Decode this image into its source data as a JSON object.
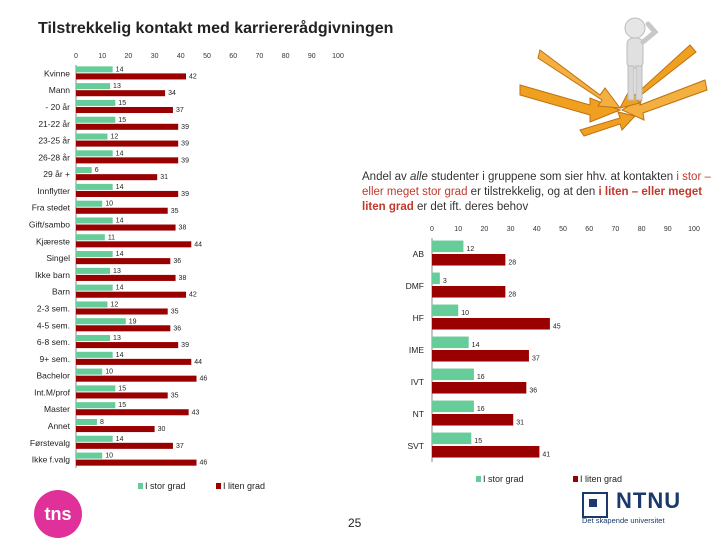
{
  "title": "Tilstrekkelig kontakt med karriererådgivningen",
  "note": {
    "part1": "Andel av",
    "alle": "alle",
    "part2": "studenter i gruppene som sier  hhv. at kontakten",
    "stor_phrase": "i stor – eller meget stor grad",
    "part3": "er tilstrekkelig, og at den",
    "liten_phrase": "i liten – eller meget liten grad",
    "part4": "er det ift. deres behov"
  },
  "page_number": "25",
  "logo_tns": "tns",
  "logo_ntnu": "NTNU",
  "logo_ntnu_tagline": "Det skapende universitet",
  "colors": {
    "stor": "#66cc99",
    "liten": "#990000",
    "accent_orange": "#f0a020"
  },
  "chart_data": [
    {
      "type": "bar",
      "orientation": "horizontal",
      "title": "",
      "xlim": [
        0,
        100
      ],
      "xticks": [
        0,
        10,
        20,
        30,
        40,
        50,
        60,
        70,
        80,
        90,
        100
      ],
      "categories": [
        "Kvinne",
        "Mann",
        "- 20 år",
        "21-22 år",
        "23-25 år",
        "26-28 år",
        "29 år +",
        "Innflytter",
        "Fra stedet",
        "Gift/sambo",
        "Kjæreste",
        "Singel",
        "Ikke barn",
        "Barn",
        "2-3 sem.",
        "4-5 sem.",
        "6-8 sem.",
        "9+ sem.",
        "Bachelor",
        "Int.M/prof",
        "Master",
        "Annet",
        "Førstevalg",
        "Ikke f.valg"
      ],
      "series": [
        {
          "name": "I stor grad",
          "values": [
            14,
            13,
            15,
            15,
            12,
            14,
            6,
            14,
            10,
            14,
            11,
            14,
            13,
            14,
            12,
            19,
            13,
            14,
            10,
            15,
            15,
            8,
            14,
            10
          ]
        },
        {
          "name": "I liten grad",
          "values": [
            42,
            34,
            37,
            39,
            39,
            39,
            31,
            39,
            35,
            38,
            44,
            36,
            38,
            42,
            35,
            36,
            39,
            44,
            46,
            35,
            43,
            30,
            37,
            46
          ]
        }
      ],
      "legend_position": "bottom"
    },
    {
      "type": "bar",
      "orientation": "horizontal",
      "title": "",
      "xlim": [
        0,
        100
      ],
      "xticks": [
        0,
        10,
        20,
        30,
        40,
        50,
        60,
        70,
        80,
        90,
        100
      ],
      "categories": [
        "AB",
        "DMF",
        "HF",
        "IME",
        "IVT",
        "NT",
        "SVT"
      ],
      "series": [
        {
          "name": "I stor grad",
          "values": [
            12,
            3,
            10,
            14,
            16,
            16,
            15
          ]
        },
        {
          "name": "I liten grad",
          "values": [
            28,
            28,
            45,
            37,
            36,
            31,
            41
          ]
        }
      ],
      "legend_position": "bottom"
    }
  ]
}
